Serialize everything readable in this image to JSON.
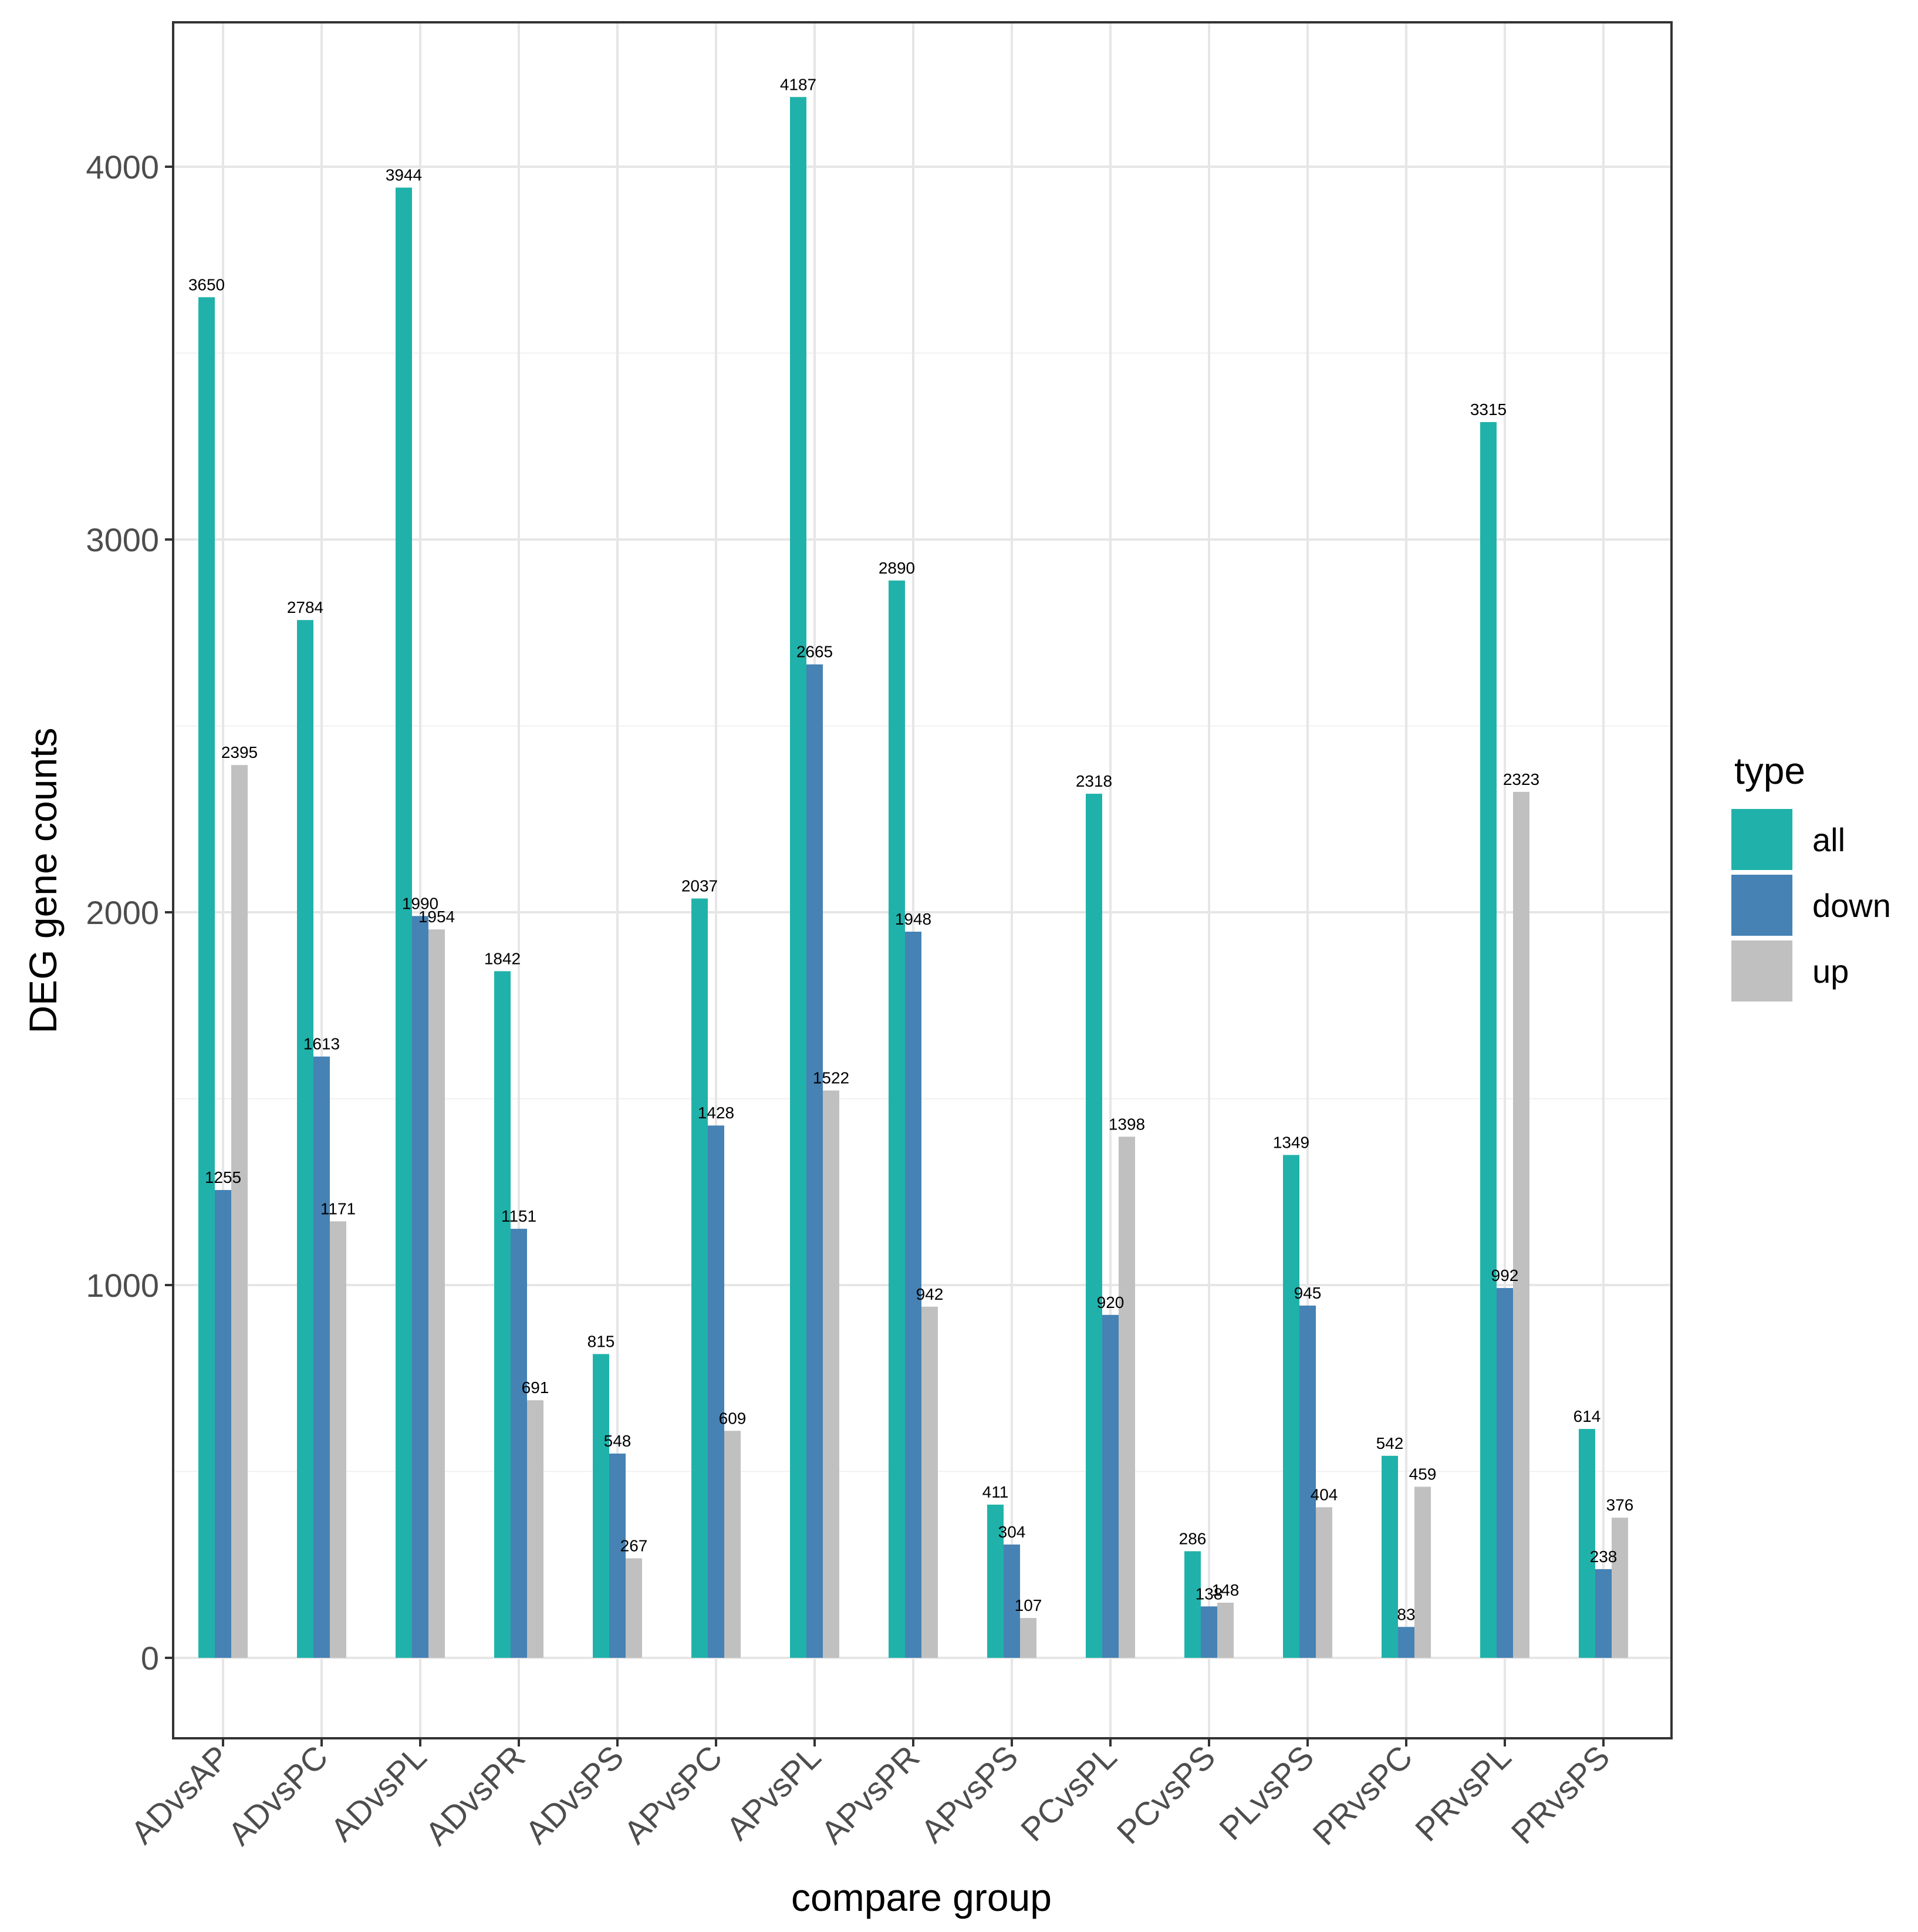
{
  "chart_data": {
    "type": "bar",
    "title": "",
    "xlabel": "compare group",
    "ylabel": "DEG gene counts",
    "ylim": [
      -200,
      4400
    ],
    "yticks": [
      0,
      1000,
      2000,
      3000,
      4000
    ],
    "grid": true,
    "legend": {
      "title": "type",
      "position": "right"
    },
    "categories": [
      "ADvsAP",
      "ADvsPC",
      "ADvsPL",
      "ADvsPR",
      "ADvsPS",
      "APvsPC",
      "APvsPL",
      "APvsPR",
      "APvsPS",
      "PCvsPL",
      "PCvsPS",
      "PLvsPS",
      "PRvsPC",
      "PRvsPL",
      "PRvsPS"
    ],
    "series": [
      {
        "name": "all",
        "color": "#20B2AA",
        "values": [
          3650,
          2784,
          3944,
          1842,
          815,
          2037,
          4187,
          2890,
          411,
          2318,
          286,
          1349,
          542,
          3315,
          614
        ]
      },
      {
        "name": "down",
        "color": "#4682B4",
        "values": [
          1255,
          1613,
          1990,
          1151,
          548,
          1428,
          2665,
          1948,
          304,
          920,
          138,
          945,
          83,
          992,
          238
        ]
      },
      {
        "name": "up",
        "color": "#C0C0C0",
        "values": [
          2395,
          1171,
          1954,
          691,
          267,
          609,
          1522,
          942,
          107,
          1398,
          148,
          404,
          459,
          2323,
          376
        ]
      }
    ]
  }
}
